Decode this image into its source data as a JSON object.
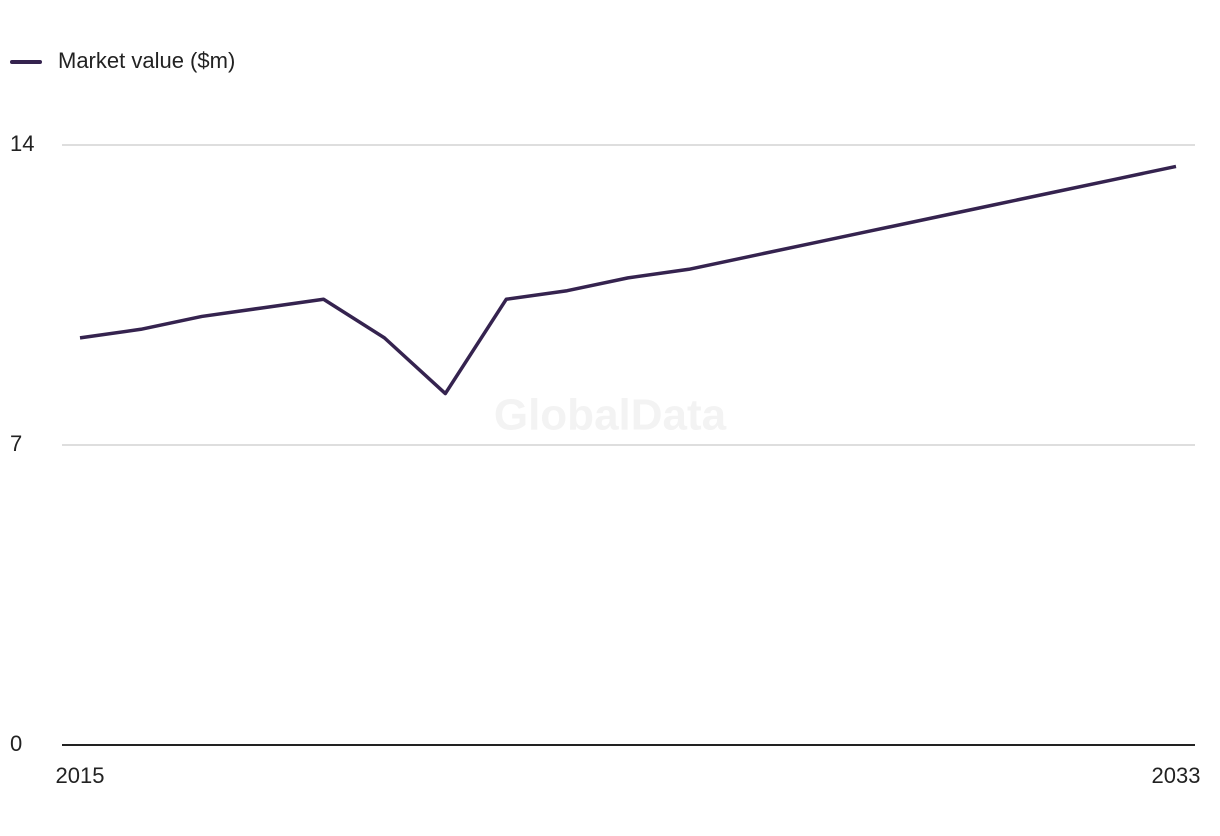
{
  "chart_data": {
    "type": "line",
    "watermark": "GlobalData",
    "x": [
      2015,
      2016,
      2017,
      2018,
      2019,
      2020,
      2021,
      2022,
      2023,
      2024,
      2025,
      2026,
      2027,
      2028,
      2029,
      2030,
      2031,
      2032,
      2033
    ],
    "series": [
      {
        "name": "Market value ($m)",
        "color": "#35234f",
        "values": [
          9.5,
          9.7,
          10.0,
          10.2,
          10.4,
          9.5,
          8.2,
          10.4,
          10.6,
          10.9,
          11.1,
          11.4,
          11.7,
          12.0,
          12.3,
          12.6,
          12.9,
          13.2,
          13.5
        ]
      }
    ],
    "xlim": [
      2015,
      2033
    ],
    "xticks": [
      2015,
      2033
    ],
    "ylim": [
      0,
      14
    ],
    "yticks": [
      0,
      7,
      14
    ],
    "grid": true
  }
}
